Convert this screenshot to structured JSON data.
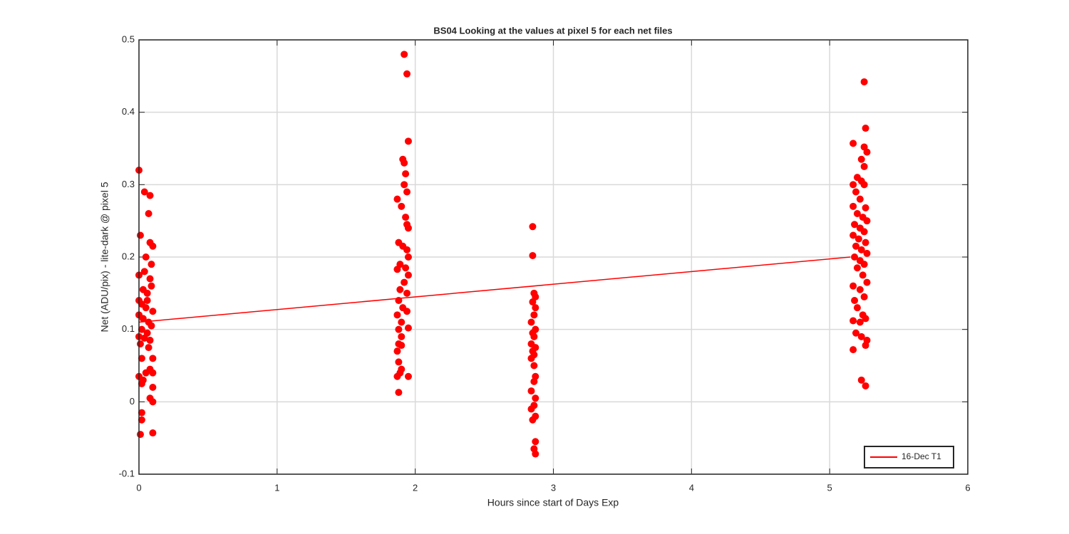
{
  "chart_data": {
    "type": "scatter",
    "title": "BS04  Looking at the values at pixel 5 for each net files",
    "x_label": "Hours since start of Days Exp",
    "y_label": "Net (ADU/pix) - lite-dark @ pixel 5",
    "xlim": [
      0,
      6
    ],
    "xticks": [
      0,
      1,
      2,
      3,
      4,
      5,
      6
    ],
    "ylim": [
      -0.1,
      0.5
    ],
    "yticks": [
      -0.1,
      0,
      0.1,
      0.2,
      0.3,
      0.4,
      0.5
    ],
    "grid": true,
    "legend_position": "lower right",
    "series": [
      {
        "type": "scatter",
        "color": "#ff0000",
        "x": [
          0,
          0.01,
          0.04,
          0.08,
          0.07,
          0.05,
          0.08,
          0.1,
          0.09,
          0.08,
          0.09,
          0,
          0.03,
          0.06,
          0,
          0.02,
          0.05,
          0.1,
          0,
          0.03,
          0.07,
          0.09,
          0.02,
          0.06,
          0,
          0.04,
          0.08,
          0.01,
          0.07,
          0.1,
          0.02,
          0,
          0.03,
          0.05,
          0.08,
          0.1,
          0.02,
          0.1,
          0.08,
          0.1,
          0.02,
          0.02,
          0.01,
          0.1,
          0.06,
          0.04,
          1.92,
          1.94,
          1.95,
          1.91,
          1.92,
          1.93,
          1.92,
          1.94,
          1.87,
          1.9,
          1.93,
          1.94,
          1.95,
          1.88,
          1.91,
          1.94,
          1.95,
          1.89,
          1.93,
          1.87,
          1.95,
          1.92,
          1.89,
          1.94,
          1.88,
          1.91,
          1.94,
          1.87,
          1.9,
          1.88,
          1.95,
          1.9,
          1.88,
          1.9,
          1.87,
          1.88,
          1.9,
          1.87,
          1.95,
          1.89,
          1.88,
          2.85,
          2.85,
          2.86,
          2.87,
          2.85,
          2.87,
          2.86,
          2.84,
          2.87,
          2.85,
          2.86,
          2.84,
          2.87,
          2.85,
          2.86,
          2.84,
          2.86,
          2.87,
          2.86,
          2.84,
          2.87,
          2.86,
          2.84,
          2.87,
          2.85,
          2.87,
          2.86,
          2.87,
          5.25,
          5.26,
          5.17,
          5.25,
          5.27,
          5.23,
          5.25,
          5.2,
          5.23,
          5.17,
          5.25,
          5.19,
          5.22,
          5.17,
          5.26,
          5.2,
          5.24,
          5.27,
          5.18,
          5.22,
          5.25,
          5.17,
          5.21,
          5.26,
          5.19,
          5.23,
          5.27,
          5.18,
          5.22,
          5.25,
          5.2,
          5.24,
          5.27,
          5.17,
          5.22,
          5.25,
          5.18,
          5.2,
          5.24,
          5.26,
          5.17,
          5.22,
          5.19,
          5.23,
          5.27,
          5.26,
          5.17,
          5.23,
          5.26
        ],
        "y": [
          0.32,
          0.23,
          0.29,
          0.285,
          0.26,
          0.2,
          0.22,
          0.215,
          0.19,
          0.17,
          0.16,
          0.175,
          0.155,
          0.15,
          0.14,
          0.135,
          0.13,
          0.125,
          0.12,
          0.115,
          0.11,
          0.105,
          0.1,
          0.095,
          0.09,
          0.088,
          0.085,
          0.08,
          0.075,
          0.06,
          0.06,
          0.035,
          0.03,
          0.04,
          0.045,
          0.04,
          0.025,
          0.02,
          0.005,
          0,
          -0.015,
          -0.025,
          -0.045,
          -0.043,
          0.14,
          0.18,
          0.48,
          0.453,
          0.36,
          0.335,
          0.33,
          0.315,
          0.3,
          0.29,
          0.28,
          0.27,
          0.255,
          0.245,
          0.24,
          0.22,
          0.215,
          0.21,
          0.2,
          0.19,
          0.185,
          0.183,
          0.175,
          0.165,
          0.155,
          0.15,
          0.14,
          0.13,
          0.125,
          0.12,
          0.11,
          0.1,
          0.102,
          0.09,
          0.08,
          0.078,
          0.07,
          0.055,
          0.045,
          0.035,
          0.035,
          0.04,
          0.013,
          0.242,
          0.202,
          0.15,
          0.145,
          0.138,
          0.13,
          0.12,
          0.11,
          0.1,
          0.095,
          0.09,
          0.08,
          0.075,
          0.07,
          0.065,
          0.06,
          0.05,
          0.035,
          0.028,
          0.015,
          0.005,
          -0.005,
          -0.01,
          -0.02,
          -0.025,
          -0.055,
          -0.065,
          -0.072,
          0.442,
          0.378,
          0.357,
          0.352,
          0.345,
          0.335,
          0.325,
          0.31,
          0.305,
          0.3,
          0.3,
          0.29,
          0.28,
          0.27,
          0.268,
          0.26,
          0.255,
          0.25,
          0.245,
          0.24,
          0.235,
          0.23,
          0.225,
          0.22,
          0.215,
          0.21,
          0.205,
          0.2,
          0.195,
          0.19,
          0.185,
          0.175,
          0.165,
          0.16,
          0.155,
          0.145,
          0.14,
          0.13,
          0.12,
          0.115,
          0.112,
          0.11,
          0.095,
          0.09,
          0.085,
          0.078,
          0.072,
          0.03,
          0.022
        ]
      },
      {
        "type": "line",
        "name": "16-Dec T1",
        "color": "#ff0000",
        "x": [
          0,
          5.15
        ],
        "y": [
          0.11,
          0.2
        ]
      }
    ]
  }
}
